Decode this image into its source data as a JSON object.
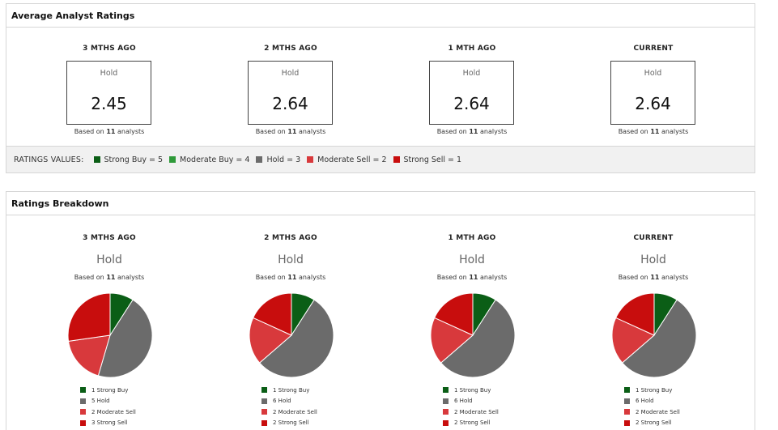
{
  "avg_panel": {
    "title": "Average Analyst Ratings",
    "columns": [
      {
        "heading": "3 MTHS AGO",
        "rating": "Hold",
        "value": "2.45",
        "based_prefix": "Based on",
        "analysts": "11",
        "based_suffix": "analysts"
      },
      {
        "heading": "2 MTHS AGO",
        "rating": "Hold",
        "value": "2.64",
        "based_prefix": "Based on",
        "analysts": "11",
        "based_suffix": "analysts"
      },
      {
        "heading": "1 MTH AGO",
        "rating": "Hold",
        "value": "2.64",
        "based_prefix": "Based on",
        "analysts": "11",
        "based_suffix": "analysts"
      },
      {
        "heading": "CURRENT",
        "rating": "Hold",
        "value": "2.64",
        "based_prefix": "Based on",
        "analysts": "11",
        "based_suffix": "analysts"
      }
    ],
    "legend": {
      "title": "RATINGS VALUES:",
      "items": [
        {
          "label": "Strong Buy = 5",
          "color": "#0b5e16"
        },
        {
          "label": "Moderate Buy = 4",
          "color": "#2f9a3a"
        },
        {
          "label": "Hold = 3",
          "color": "#6b6b6b"
        },
        {
          "label": "Moderate Sell = 2",
          "color": "#d8393c"
        },
        {
          "label": "Strong Sell = 1",
          "color": "#c80d0d"
        }
      ]
    }
  },
  "breakdown_panel": {
    "title": "Ratings Breakdown",
    "columns": [
      {
        "heading": "3 MTHS AGO",
        "rating": "Hold",
        "based_prefix": "Based on",
        "analysts": "11",
        "based_suffix": "analysts",
        "legend": [
          "1 Strong Buy",
          "5 Hold",
          "2 Moderate Sell",
          "3 Strong Sell"
        ]
      },
      {
        "heading": "2 MTHS AGO",
        "rating": "Hold",
        "based_prefix": "Based on",
        "analysts": "11",
        "based_suffix": "analysts",
        "legend": [
          "1 Strong Buy",
          "6 Hold",
          "2 Moderate Sell",
          "2 Strong Sell"
        ]
      },
      {
        "heading": "1 MTH AGO",
        "rating": "Hold",
        "based_prefix": "Based on",
        "analysts": "11",
        "based_suffix": "analysts",
        "legend": [
          "1 Strong Buy",
          "6 Hold",
          "2 Moderate Sell",
          "2 Strong Sell"
        ]
      },
      {
        "heading": "CURRENT",
        "rating": "Hold",
        "based_prefix": "Based on",
        "analysts": "11",
        "based_suffix": "analysts",
        "legend": [
          "1 Strong Buy",
          "6 Hold",
          "2 Moderate Sell",
          "2 Strong Sell"
        ]
      }
    ]
  },
  "chart_data": [
    {
      "type": "pie",
      "title": "3 MTHS AGO",
      "categories": [
        "Strong Buy",
        "Hold",
        "Moderate Sell",
        "Strong Sell"
      ],
      "values": [
        1,
        5,
        2,
        3
      ],
      "colors": [
        "#0b5e16",
        "#6b6b6b",
        "#d8393c",
        "#c80d0d"
      ]
    },
    {
      "type": "pie",
      "title": "2 MTHS AGO",
      "categories": [
        "Strong Buy",
        "Hold",
        "Moderate Sell",
        "Strong Sell"
      ],
      "values": [
        1,
        6,
        2,
        2
      ],
      "colors": [
        "#0b5e16",
        "#6b6b6b",
        "#d8393c",
        "#c80d0d"
      ]
    },
    {
      "type": "pie",
      "title": "1 MTH AGO",
      "categories": [
        "Strong Buy",
        "Hold",
        "Moderate Sell",
        "Strong Sell"
      ],
      "values": [
        1,
        6,
        2,
        2
      ],
      "colors": [
        "#0b5e16",
        "#6b6b6b",
        "#d8393c",
        "#c80d0d"
      ]
    },
    {
      "type": "pie",
      "title": "CURRENT",
      "categories": [
        "Strong Buy",
        "Hold",
        "Moderate Sell",
        "Strong Sell"
      ],
      "values": [
        1,
        6,
        2,
        2
      ],
      "colors": [
        "#0b5e16",
        "#6b6b6b",
        "#d8393c",
        "#c80d0d"
      ]
    }
  ]
}
